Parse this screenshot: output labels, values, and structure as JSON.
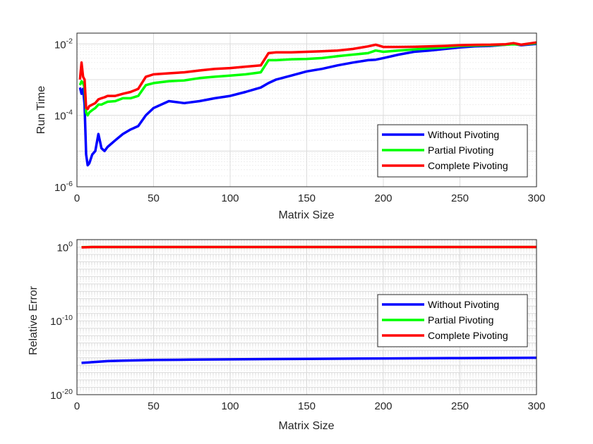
{
  "chart_data": [
    {
      "type": "line",
      "title": "",
      "xlabel": "Matrix Size",
      "ylabel": "Run Time",
      "xlim": [
        0,
        300
      ],
      "ylim": [
        1e-06,
        0.02
      ],
      "yscale": "log",
      "grid": true,
      "minor_grid": true,
      "legend_position": "bottom-right",
      "x_ticks": [
        "0",
        "50",
        "100",
        "150",
        "200",
        "250",
        "300"
      ],
      "y_ticks": [
        {
          "base": "10",
          "exp": "-6",
          "value": 1e-06
        },
        {
          "base": "10",
          "exp": "-4",
          "value": 0.0001
        },
        {
          "base": "10",
          "exp": "-2",
          "value": 0.01
        }
      ],
      "x": [
        2,
        3,
        4,
        5,
        6,
        7,
        8,
        10,
        12,
        14,
        16,
        18,
        20,
        25,
        30,
        35,
        40,
        45,
        50,
        60,
        70,
        80,
        90,
        100,
        110,
        120,
        125,
        130,
        140,
        150,
        160,
        170,
        180,
        190,
        195,
        200,
        210,
        220,
        230,
        240,
        250,
        260,
        270,
        280,
        285,
        290,
        300
      ],
      "series": [
        {
          "name": "Without Pivoting",
          "color": "#0000ff",
          "values": [
            0.0006,
            0.0004,
            0.00055,
            0.0002,
            8e-06,
            4e-06,
            4.5e-06,
            8e-06,
            1e-05,
            3e-05,
            1.2e-05,
            1e-05,
            1.3e-05,
            2e-05,
            3e-05,
            4e-05,
            5e-05,
            0.0001,
            0.00016,
            0.00025,
            0.00022,
            0.00025,
            0.0003,
            0.00035,
            0.00045,
            0.0006,
            0.0008,
            0.001,
            0.0013,
            0.0017,
            0.002,
            0.0025,
            0.003,
            0.0035,
            0.0036,
            0.004,
            0.005,
            0.006,
            0.0065,
            0.0072,
            0.008,
            0.0085,
            0.0088,
            0.0095,
            0.01,
            0.0092,
            0.01
          ]
        },
        {
          "name": "Partial Pivoting",
          "color": "#00ff00",
          "values": [
            0.0007,
            0.0009,
            0.0008,
            0.0006,
            0.00012,
            0.0001,
            0.00012,
            0.00014,
            0.00016,
            0.0002,
            0.0002,
            0.00022,
            0.00024,
            0.00025,
            0.0003,
            0.0003,
            0.00035,
            0.0007,
            0.0008,
            0.0009,
            0.00095,
            0.0011,
            0.0012,
            0.0013,
            0.0014,
            0.0016,
            0.0035,
            0.0035,
            0.0037,
            0.0038,
            0.004,
            0.0045,
            0.005,
            0.0055,
            0.0065,
            0.006,
            0.0065,
            0.007,
            0.0075,
            0.008,
            0.0088,
            0.009,
            0.0092,
            0.0095,
            0.0098,
            0.0095,
            0.0105
          ]
        },
        {
          "name": "Complete Pivoting",
          "color": "#ff0000",
          "values": [
            0.001,
            0.003,
            0.0012,
            0.001,
            0.00016,
            0.00015,
            0.00018,
            0.0002,
            0.00022,
            0.00028,
            0.0003,
            0.00032,
            0.00035,
            0.00035,
            0.0004,
            0.00045,
            0.00055,
            0.0012,
            0.0014,
            0.0015,
            0.0016,
            0.0018,
            0.002,
            0.0021,
            0.0023,
            0.0025,
            0.0055,
            0.0058,
            0.0058,
            0.006,
            0.0062,
            0.0065,
            0.0072,
            0.0085,
            0.0095,
            0.0082,
            0.0082,
            0.0083,
            0.0085,
            0.0088,
            0.0092,
            0.0094,
            0.0095,
            0.0098,
            0.0105,
            0.0095,
            0.011
          ]
        }
      ]
    },
    {
      "type": "line",
      "title": "",
      "xlabel": "Matrix Size",
      "ylabel": "Relative Error",
      "xlim": [
        0,
        300
      ],
      "ylim": [
        1e-20,
        10
      ],
      "yscale": "log",
      "grid": true,
      "minor_grid": true,
      "legend_position": "right",
      "x_ticks": [
        "0",
        "50",
        "100",
        "150",
        "200",
        "250",
        "300"
      ],
      "y_ticks": [
        {
          "base": "10",
          "exp": "-20",
          "value": 1e-20
        },
        {
          "base": "10",
          "exp": "-10",
          "value": 1e-10
        },
        {
          "base": "10",
          "exp": "0",
          "value": 1
        }
      ],
      "x": [
        3,
        10,
        20,
        30,
        50,
        75,
        100,
        150,
        200,
        250,
        300
      ],
      "series": [
        {
          "name": "Without Pivoting",
          "color": "#0000ff",
          "values": [
            2e-16,
            2.5e-16,
            3.5e-16,
            4e-16,
            5e-16,
            5.5e-16,
            6e-16,
            7e-16,
            8e-16,
            9e-16,
            1e-15
          ]
        },
        {
          "name": "Partial Pivoting",
          "color": "#00ff00",
          "values": [
            0.95,
            1,
            1,
            1,
            1,
            1,
            1,
            1,
            1,
            1,
            1
          ]
        },
        {
          "name": "Complete Pivoting",
          "color": "#ff0000",
          "values": [
            0.9,
            1,
            1,
            1,
            1,
            1,
            1,
            1,
            1,
            1,
            1
          ]
        }
      ]
    }
  ]
}
